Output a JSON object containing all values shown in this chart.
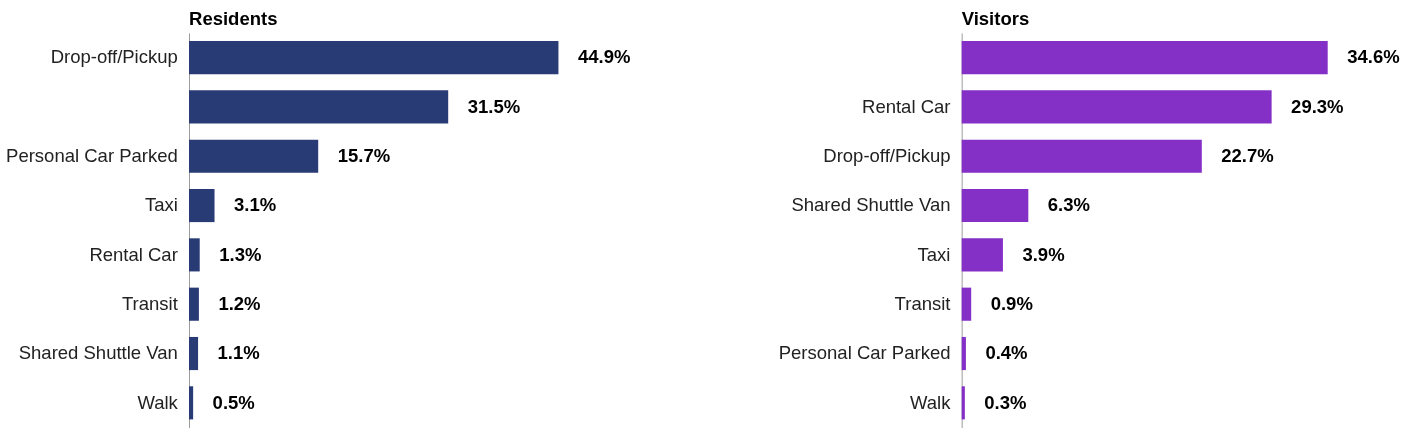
{
  "chart_data": [
    {
      "type": "bar",
      "orientation": "horizontal",
      "title": "Residents",
      "color": "#293b75",
      "categories": [
        "Drop-off/Pickup",
        null,
        "Personal Car Parked",
        "Taxi",
        "Rental Car",
        "Transit",
        "Shared Shuttle Van",
        "Walk"
      ],
      "values": [
        44.9,
        31.5,
        15.7,
        3.1,
        1.3,
        1.2,
        1.1,
        0.5
      ],
      "value_labels": [
        "44.9%",
        "31.5%",
        "15.7%",
        "3.1%",
        "1.3%",
        "1.2%",
        "1.1%",
        "0.5%"
      ]
    },
    {
      "type": "bar",
      "orientation": "horizontal",
      "title": "Visitors",
      "color": "#842fc6",
      "categories": [
        null,
        "Rental Car",
        "Drop-off/Pickup",
        "Shared Shuttle Van",
        "Taxi",
        "Transit",
        "Personal Car Parked",
        "Walk"
      ],
      "values": [
        34.6,
        29.3,
        22.7,
        6.3,
        3.9,
        0.9,
        0.4,
        0.3
      ],
      "value_labels": [
        "34.6%",
        "29.3%",
        "22.7%",
        "6.3%",
        "3.9%",
        "0.9%",
        "0.4%",
        "0.3%"
      ]
    }
  ]
}
